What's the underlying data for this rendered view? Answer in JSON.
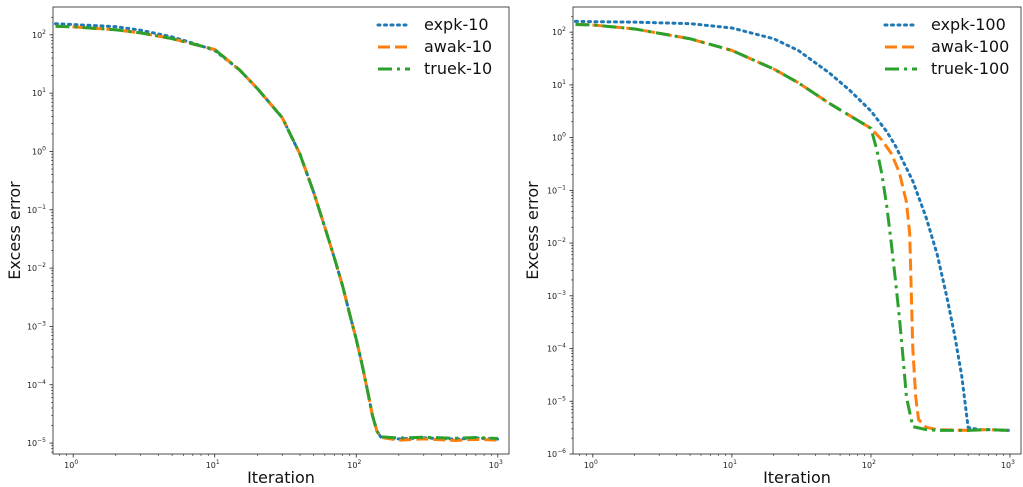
{
  "chart_data": [
    {
      "type": "line",
      "xscale": "log",
      "yscale": "log",
      "xlim": [
        0.72,
        1200
      ],
      "ylim": [
        6.5e-06,
        300
      ],
      "xlabel": "Iteration",
      "ylabel": "Excess error",
      "grid": false,
      "legend_position": "top-right",
      "x_ticks": [
        {
          "value": 1,
          "base": "10",
          "exp": "0"
        },
        {
          "value": 10,
          "base": "10",
          "exp": "1"
        },
        {
          "value": 100,
          "base": "10",
          "exp": "2"
        },
        {
          "value": 1000,
          "base": "10",
          "exp": "3"
        }
      ],
      "y_ticks": [
        {
          "value": 1e-05,
          "base": "10",
          "exp": "−5"
        },
        {
          "value": 0.0001,
          "base": "10",
          "exp": "−4"
        },
        {
          "value": 0.001,
          "base": "10",
          "exp": "−3"
        },
        {
          "value": 0.01,
          "base": "10",
          "exp": "−2"
        },
        {
          "value": 0.1,
          "base": "10",
          "exp": "−1"
        },
        {
          "value": 1,
          "base": "10",
          "exp": "0"
        },
        {
          "value": 10,
          "base": "10",
          "exp": "1"
        },
        {
          "value": 100,
          "base": "10",
          "exp": "2"
        }
      ],
      "series": [
        {
          "name": "expk-10",
          "color": "#1f77b4",
          "style": "dotted",
          "x": [
            0.75,
            1,
            2,
            3,
            5,
            7,
            10,
            15,
            20,
            30,
            40,
            50,
            60,
            70,
            80,
            90,
            100,
            110,
            120,
            130,
            140,
            150,
            200,
            300,
            500,
            700,
            1000
          ],
          "y": [
            155,
            150,
            138,
            120,
            92,
            72,
            54,
            25,
            12,
            3.8,
            0.9,
            0.2,
            0.05,
            0.015,
            0.005,
            0.0016,
            0.0006,
            0.00022,
            8e-05,
            3e-05,
            1.6e-05,
            1.25e-05,
            1.18e-05,
            1.23e-05,
            1.17e-05,
            1.22e-05,
            1.17e-05
          ]
        },
        {
          "name": "awak-10",
          "color": "#ff7f0e",
          "style": "dashed",
          "x": [
            0.75,
            1,
            2,
            3,
            5,
            7,
            10,
            15,
            20,
            30,
            40,
            50,
            60,
            70,
            80,
            90,
            100,
            110,
            120,
            130,
            140,
            150,
            200,
            300,
            500,
            700,
            1000
          ],
          "y": [
            140,
            137,
            122,
            108,
            86,
            70,
            56,
            25,
            12,
            3.8,
            0.9,
            0.2,
            0.05,
            0.015,
            0.005,
            0.0016,
            0.0006,
            0.00022,
            8e-05,
            3e-05,
            1.6e-05,
            1.25e-05,
            1.12e-05,
            1.18e-05,
            1.11e-05,
            1.16e-05,
            1.12e-05
          ]
        },
        {
          "name": "truek-10",
          "color": "#2ca02c",
          "style": "dashdot",
          "x": [
            0.75,
            1,
            2,
            3,
            5,
            7,
            10,
            15,
            20,
            30,
            40,
            50,
            60,
            70,
            80,
            90,
            100,
            110,
            120,
            130,
            140,
            150,
            200,
            300,
            500,
            700,
            1000
          ],
          "y": [
            140,
            137,
            122,
            108,
            86,
            70,
            56,
            25,
            12,
            3.8,
            0.9,
            0.2,
            0.05,
            0.015,
            0.005,
            0.0016,
            0.0006,
            0.00022,
            8e-05,
            3e-05,
            1.6e-05,
            1.28e-05,
            1.22e-05,
            1.26e-05,
            1.21e-05,
            1.25e-05,
            1.2e-05
          ]
        }
      ]
    },
    {
      "type": "line",
      "xscale": "log",
      "yscale": "log",
      "xlim": [
        0.72,
        1200
      ],
      "ylim": [
        1e-06,
        300
      ],
      "xlabel": "Iteration",
      "ylabel": "Excess error",
      "grid": false,
      "legend_position": "top-right",
      "x_ticks": [
        {
          "value": 1,
          "base": "10",
          "exp": "0"
        },
        {
          "value": 10,
          "base": "10",
          "exp": "1"
        },
        {
          "value": 100,
          "base": "10",
          "exp": "2"
        },
        {
          "value": 1000,
          "base": "10",
          "exp": "3"
        }
      ],
      "y_ticks": [
        {
          "value": 1e-06,
          "base": "10",
          "exp": "−6"
        },
        {
          "value": 1e-05,
          "base": "10",
          "exp": "−5"
        },
        {
          "value": 0.0001,
          "base": "10",
          "exp": "−4"
        },
        {
          "value": 0.001,
          "base": "10",
          "exp": "−3"
        },
        {
          "value": 0.01,
          "base": "10",
          "exp": "−2"
        },
        {
          "value": 0.1,
          "base": "10",
          "exp": "−1"
        },
        {
          "value": 1,
          "base": "10",
          "exp": "0"
        },
        {
          "value": 10,
          "base": "10",
          "exp": "1"
        },
        {
          "value": 100,
          "base": "10",
          "exp": "2"
        }
      ],
      "series": [
        {
          "name": "expk-100",
          "color": "#1f77b4",
          "style": "dotted",
          "x": [
            0.75,
            1,
            2,
            5,
            10,
            20,
            30,
            50,
            70,
            100,
            130,
            150,
            200,
            250,
            300,
            350,
            400,
            450,
            500,
            600,
            700,
            1000
          ],
          "y": [
            160,
            158,
            155,
            145,
            120,
            75,
            45,
            17,
            8,
            3.2,
            1.3,
            0.7,
            0.15,
            0.03,
            0.006,
            0.001,
            0.00018,
            3e-05,
            3.2e-06,
            2.9e-06,
            2.9e-06,
            2.8e-06
          ]
        },
        {
          "name": "awak-100",
          "color": "#ff7f0e",
          "style": "dashed",
          "x": [
            0.75,
            1,
            2,
            5,
            10,
            20,
            30,
            50,
            100,
            120,
            140,
            160,
            180,
            190,
            200,
            210,
            220,
            250,
            300,
            500,
            700,
            1000
          ],
          "y": [
            140,
            137,
            115,
            75,
            45,
            20,
            11,
            4.5,
            1.5,
            0.9,
            0.5,
            0.22,
            0.06,
            0.015,
            0.0001,
            1.2e-05,
            4.5e-06,
            3.2e-06,
            2.9e-06,
            2.8e-06,
            2.9e-06,
            2.8e-06
          ]
        },
        {
          "name": "truek-100",
          "color": "#2ca02c",
          "style": "dashdot",
          "x": [
            0.75,
            1,
            2,
            5,
            10,
            20,
            30,
            50,
            100,
            110,
            120,
            130,
            140,
            150,
            160,
            170,
            180,
            200,
            250,
            300,
            500,
            700,
            1000
          ],
          "y": [
            140,
            137,
            115,
            75,
            45,
            20,
            11,
            4.5,
            1.5,
            0.6,
            0.2,
            0.05,
            0.01,
            0.002,
            0.0004,
            7e-05,
            1.2e-05,
            3.3e-06,
            2.9e-06,
            2.8e-06,
            2.8e-06,
            2.9e-06,
            2.8e-06
          ]
        }
      ]
    }
  ]
}
